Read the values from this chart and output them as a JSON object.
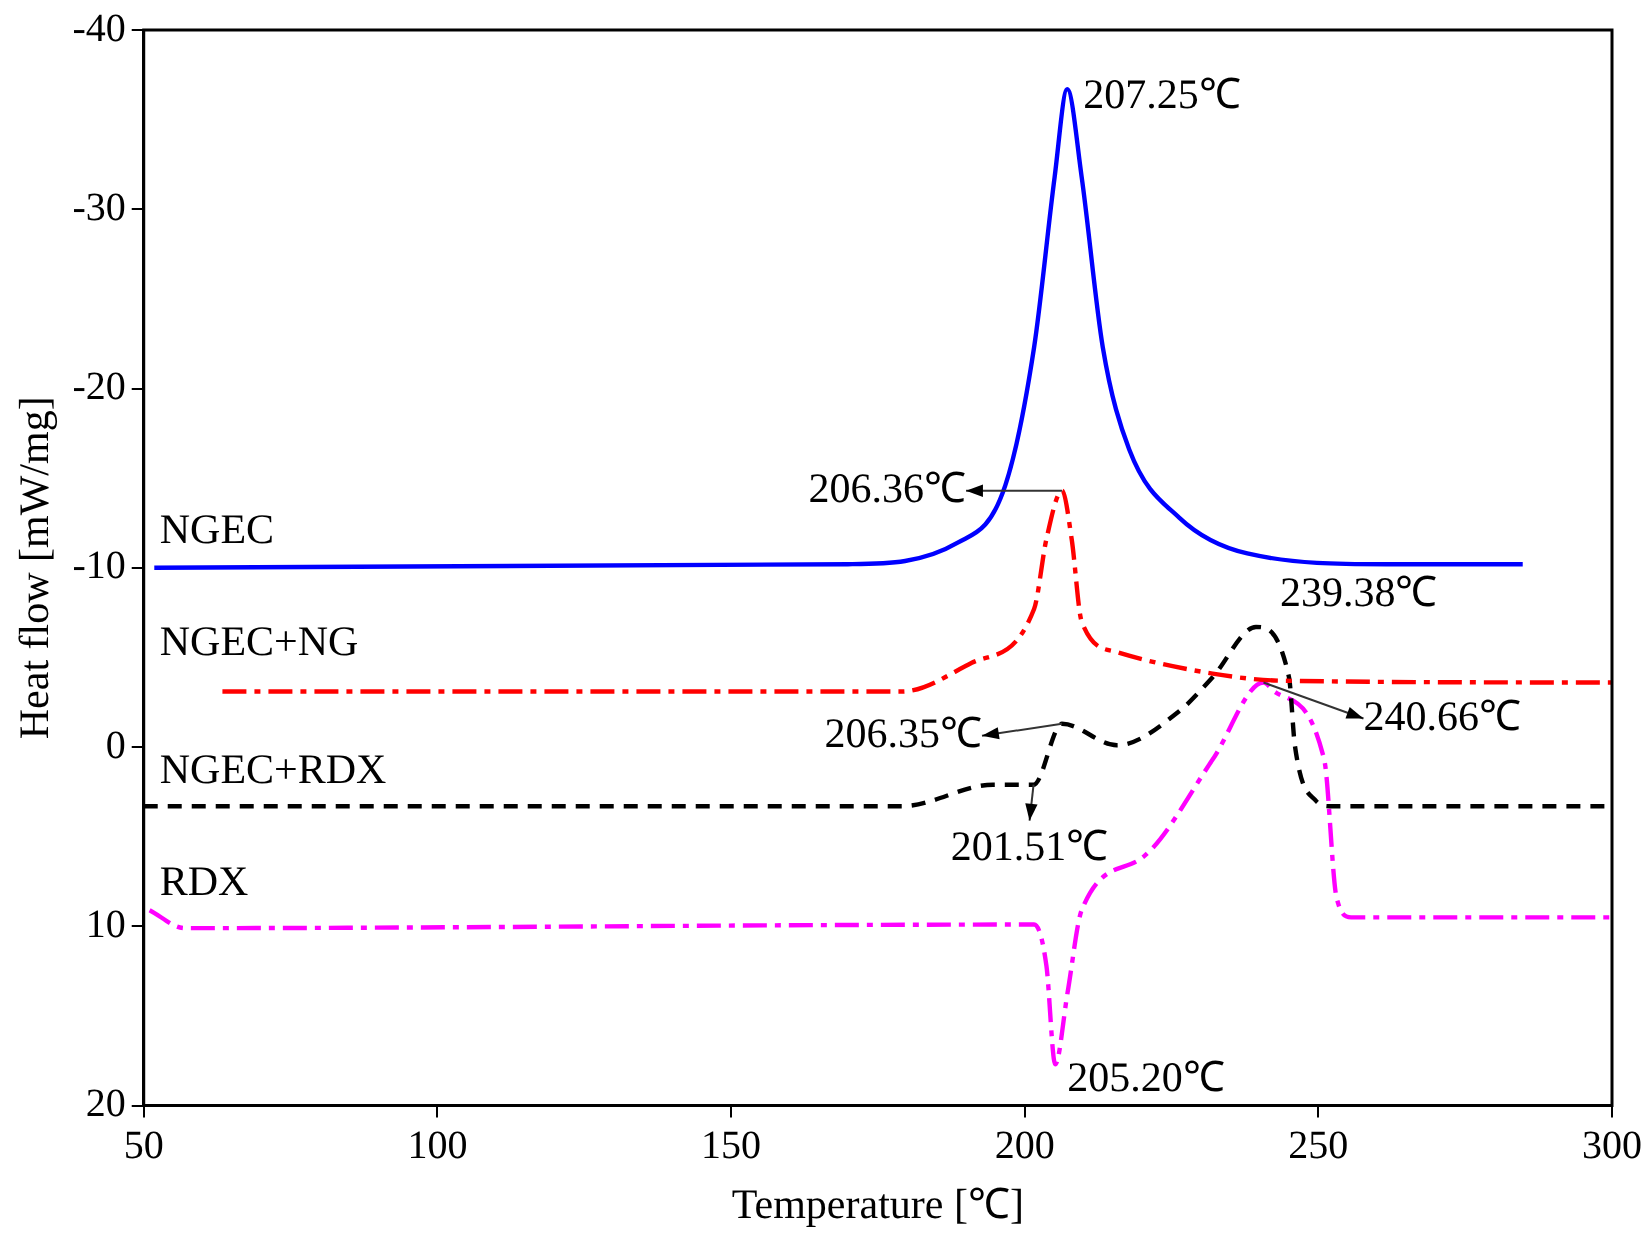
{
  "chart_data": {
    "type": "line",
    "xlabel": "Temperature [℃]",
    "ylabel": "Heat flow [mW/mg]",
    "xlim": [
      50,
      300
    ],
    "xticks": [
      50,
      100,
      150,
      200,
      250,
      300
    ],
    "ylim": [
      20,
      -40
    ],
    "yticks": [
      20,
      10,
      0,
      -10,
      -20,
      -30,
      -40
    ],
    "grid": false,
    "legend": false,
    "marker": "none",
    "series": [
      {
        "name": "NGEC",
        "color": "#0000ff",
        "line_style": "solid",
        "x": [
          51.8,
          169.9,
          188.6,
          196.7,
          201.6,
          205.1,
          207.25,
          209.7,
          213.3,
          217.8,
          226.3,
          237.9,
          261.6,
          284.8
        ],
        "values": [
          -10,
          -10.2,
          -11.4,
          -14.6,
          -22.3,
          -31.8,
          -36.7,
          -31.8,
          -22.3,
          -16.6,
          -12.8,
          -10.8,
          -10.2,
          -10.2
        ]
      },
      {
        "name": "NGEC+NG",
        "color": "#ff0000",
        "line_style": "dashdot",
        "x": [
          63.4,
          149.8,
          179.1,
          191.0,
          201.6,
          203.7,
          206.36,
          208.0,
          209.7,
          215.7,
          232.0,
          243.9,
          300
        ],
        "values": [
          -3.1,
          -3.1,
          -3.1,
          -4.7,
          -7.7,
          -11.6,
          -14.3,
          -11.6,
          -7.0,
          -5.3,
          -4.1,
          -3.7,
          -3.6
        ]
      },
      {
        "name": "NGEC+RDX",
        "color": "#000000",
        "line_style": "dashed",
        "x": [
          50,
          179.1,
          194.6,
          201.51,
          206.35,
          215.7,
          226.3,
          232.0,
          239.38,
          245.0,
          246.0,
          249.6,
          252.0,
          300
        ],
        "values": [
          3.3,
          3.3,
          2.1,
          2.1,
          -1.3,
          -0.1,
          -2.0,
          -3.9,
          -6.7,
          -3.9,
          -0.1,
          3.0,
          3.3,
          3.3
        ]
      },
      {
        "name": "RDX",
        "color": "#ff00ff",
        "line_style": "dashdot",
        "x": [
          51,
          57,
          201.6,
          203.7,
          205.2,
          207.3,
          209.7,
          220.3,
          232.0,
          240.66,
          242.5,
          251.0,
          253.1,
          255.6,
          300
        ],
        "values": [
          9.1,
          10.1,
          9.9,
          12.2,
          17.7,
          13.7,
          9.1,
          6.1,
          0.7,
          -3.6,
          -3.1,
          0.7,
          8.4,
          9.5,
          9.5
        ]
      }
    ],
    "annotations": [
      {
        "text": "207.25℃",
        "x": 207.25,
        "y": -36.7
      },
      {
        "text": "206.36℃",
        "x": 206.36,
        "y": -14.3
      },
      {
        "text": "239.38℃",
        "x": 239.38,
        "y": -6.7
      },
      {
        "text": "240.66℃",
        "x": 240.66,
        "y": -3.6
      },
      {
        "text": "206.35℃",
        "x": 206.35,
        "y": -1.3
      },
      {
        "text": "201.51℃",
        "x": 201.51,
        "y": 2.1
      },
      {
        "text": "205.20℃",
        "x": 205.2,
        "y": 17.7
      }
    ]
  }
}
